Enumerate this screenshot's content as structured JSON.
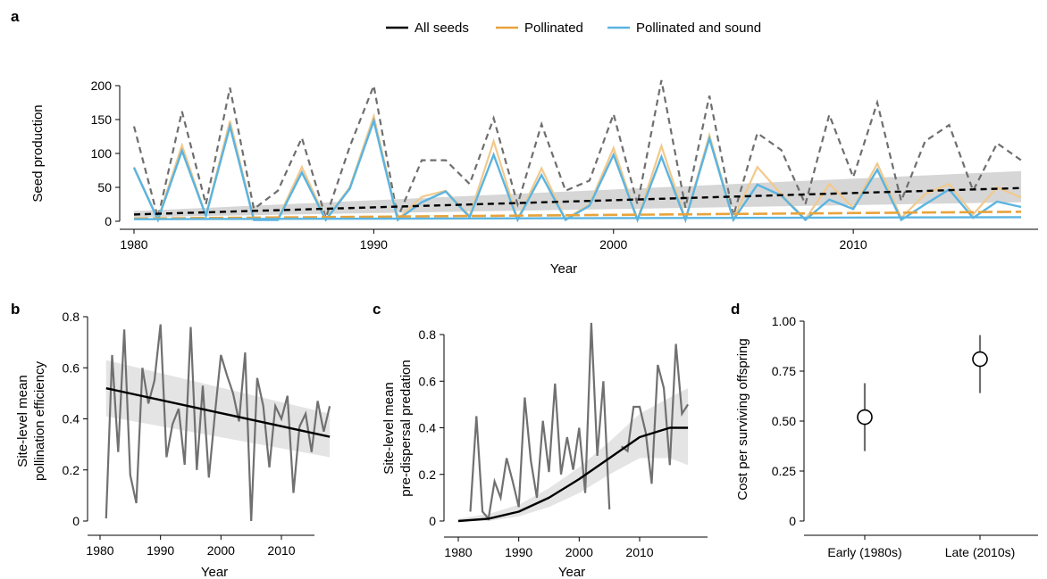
{
  "colors": {
    "all_seeds": "#000000",
    "all_seeds_raw": "#6e6e6e",
    "pollinated": "#e8a33c",
    "pollinated_light": "#f2c98c",
    "sound": "#5ab4e0",
    "grey_line": "#707070",
    "band": "#c8c8c8",
    "band_light": "#e3e3e3"
  },
  "legend": {
    "all_seeds": "All seeds",
    "pollinated": "Pollinated",
    "sound": "Pollinated and sound"
  },
  "chart_data": [
    {
      "panel": "a",
      "type": "line",
      "xlabel": "Year",
      "ylabel": "Seed production",
      "xlim": [
        1980,
        2017
      ],
      "ylim": [
        0,
        210
      ],
      "xticks": [
        1980,
        1990,
        2000,
        2010
      ],
      "yticks": [
        0,
        50,
        100,
        150,
        200
      ],
      "legend_position": "top-center",
      "x": [
        1980,
        1981,
        1982,
        1983,
        1984,
        1985,
        1986,
        1987,
        1988,
        1989,
        1990,
        1991,
        1992,
        1993,
        1994,
        1995,
        1996,
        1997,
        1998,
        1999,
        2000,
        2001,
        2002,
        2003,
        2004,
        2005,
        2006,
        2007,
        2008,
        2009,
        2010,
        2011,
        2012,
        2013,
        2014,
        2015,
        2016,
        2017
      ],
      "series": [
        {
          "name": "All seeds",
          "style": "dashed-raw",
          "values": [
            140,
            5,
            162,
            25,
            197,
            18,
            45,
            123,
            5,
            110,
            200,
            5,
            90,
            90,
            55,
            152,
            25,
            143,
            45,
            60,
            158,
            25,
            208,
            20,
            185,
            8,
            130,
            105,
            25,
            157,
            65,
            175,
            30,
            118,
            142,
            45,
            115,
            90
          ]
        },
        {
          "name": "Pollinated",
          "style": "raw",
          "values": [
            80,
            3,
            112,
            8,
            148,
            3,
            3,
            80,
            3,
            50,
            155,
            3,
            36,
            45,
            8,
            118,
            3,
            78,
            3,
            25,
            108,
            3,
            111,
            3,
            127,
            3,
            80,
            40,
            3,
            55,
            20,
            85,
            5,
            40,
            55,
            10,
            50,
            35
          ]
        },
        {
          "name": "Pollinated and sound",
          "style": "raw",
          "values": [
            79,
            2,
            104,
            8,
            140,
            2,
            2,
            72,
            2,
            48,
            148,
            2,
            28,
            44,
            6,
            98,
            2,
            68,
            2,
            23,
            98,
            2,
            95,
            2,
            122,
            2,
            54,
            38,
            2,
            32,
            18,
            76,
            2,
            25,
            47,
            5,
            29,
            21
          ]
        }
      ],
      "trends": [
        {
          "name": "All seeds",
          "start": 10,
          "end": 49,
          "band_start": [
            6,
            15
          ],
          "band_end": [
            28,
            74
          ]
        },
        {
          "name": "Pollinated",
          "start": 4,
          "end": 14
        },
        {
          "name": "Pollinated and sound",
          "start": 3,
          "end": 6
        }
      ]
    },
    {
      "panel": "b",
      "type": "line",
      "xlabel": "Year",
      "ylabel": [
        "Site-level mean",
        "pollination efficiency"
      ],
      "xlim": [
        1978,
        2018
      ],
      "ylim": [
        0,
        0.8
      ],
      "xticks": [
        1980,
        1990,
        2000,
        2010
      ],
      "yticks": [
        0,
        0.2,
        0.4,
        0.6,
        0.8
      ],
      "ytick_labels": [
        "0",
        "0.2",
        "0.4",
        "0.6",
        "0.8"
      ],
      "x": [
        1981,
        1982,
        1983,
        1984,
        1985,
        1986,
        1987,
        1988,
        1989,
        1990,
        1991,
        1992,
        1993,
        1994,
        1995,
        1996,
        1997,
        1998,
        1999,
        2000,
        2001,
        2002,
        2003,
        2004,
        2005,
        2006,
        2007,
        2008,
        2009,
        2010,
        2011,
        2012,
        2013,
        2014,
        2015,
        2016,
        2017,
        2018
      ],
      "values": [
        0.01,
        0.65,
        0.27,
        0.75,
        0.18,
        0.07,
        0.6,
        0.46,
        0.55,
        0.77,
        0.25,
        0.38,
        0.44,
        0.22,
        0.76,
        0.2,
        0.53,
        0.17,
        0.42,
        0.65,
        0.57,
        0.5,
        0.39,
        0.66,
        0.0,
        0.56,
        0.45,
        0.21,
        0.45,
        0.4,
        0.49,
        0.11,
        0.37,
        0.42,
        0.27,
        0.47,
        0.35,
        0.45
      ],
      "trend": {
        "start_x": 1981,
        "end_x": 2018,
        "start": 0.52,
        "end": 0.33,
        "band_start": [
          0.41,
          0.63
        ],
        "band_end": [
          0.25,
          0.42
        ]
      }
    },
    {
      "panel": "c",
      "type": "line",
      "xlabel": "Year",
      "ylabel": [
        "Site-level mean",
        "pre-dispersal predation"
      ],
      "xlim": [
        1978,
        2019
      ],
      "ylim": [
        0,
        0.85
      ],
      "xticks": [
        1980,
        1990,
        2000,
        2010
      ],
      "yticks": [
        0,
        0.2,
        0.4,
        0.6,
        0.8
      ],
      "ytick_labels": [
        "0",
        "0.2",
        "0.4",
        "0.6",
        "0.8"
      ],
      "x": [
        1982,
        1983,
        1984,
        1985,
        1986,
        1987,
        1988,
        1989,
        1990,
        1991,
        1992,
        1993,
        1994,
        1995,
        1996,
        1997,
        1998,
        1999,
        2000,
        2001,
        2002,
        2003,
        2004,
        2005,
        2006,
        2007,
        2008,
        2009,
        2010,
        2011,
        2012,
        2013,
        2014,
        2015,
        2016,
        2017,
        2018
      ],
      "values": [
        0.04,
        0.45,
        0.04,
        0.01,
        0.17,
        0.1,
        0.27,
        0.17,
        0.06,
        0.53,
        0.26,
        0.1,
        0.43,
        0.21,
        0.59,
        0.2,
        0.36,
        0.22,
        0.4,
        0.12,
        0.85,
        0.28,
        0.6,
        0.05,
        null,
        0.32,
        0.3,
        0.49,
        0.49,
        0.38,
        0.16,
        0.67,
        0.57,
        0.24,
        0.76,
        0.46,
        0.5
      ],
      "trend_curve": {
        "x": [
          1980,
          1985,
          1990,
          1995,
          2000,
          2005,
          2010,
          2015,
          2018
        ],
        "y": [
          0.0,
          0.01,
          0.04,
          0.1,
          0.18,
          0.27,
          0.36,
          0.4,
          0.4
        ],
        "band_low": [
          0.0,
          0.0,
          0.02,
          0.06,
          0.12,
          0.2,
          0.27,
          0.27,
          0.24
        ],
        "band_high": [
          0.01,
          0.03,
          0.07,
          0.14,
          0.23,
          0.34,
          0.46,
          0.53,
          0.57
        ]
      }
    },
    {
      "panel": "d",
      "type": "scatter",
      "ylabel": "Cost per surviving offspring",
      "ylim": [
        0,
        1.0
      ],
      "yticks": [
        0,
        0.25,
        0.5,
        0.75,
        1.0
      ],
      "ytick_labels": [
        "0",
        "0.25",
        "0.50",
        "0.75",
        "1.00"
      ],
      "categories": [
        "Early (1980s)",
        "Late (2010s)"
      ],
      "values": [
        0.52,
        0.81
      ],
      "lower": [
        0.35,
        0.64
      ],
      "upper": [
        0.69,
        0.93
      ]
    }
  ]
}
